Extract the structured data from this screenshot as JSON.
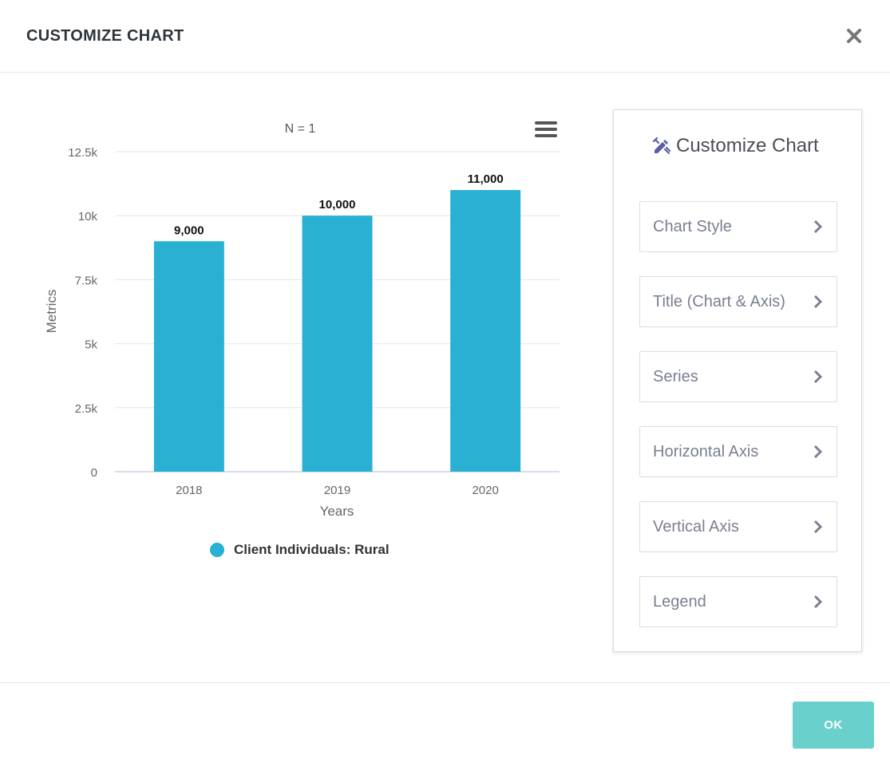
{
  "modal": {
    "title": "CUSTOMIZE CHART",
    "close_icon": "close-icon",
    "ok_label": "OK"
  },
  "chart_data": {
    "type": "bar",
    "title": "N = 1",
    "categories": [
      "2018",
      "2019",
      "2020"
    ],
    "series": [
      {
        "name": "Client Individuals: Rural",
        "values": [
          9000,
          10000,
          11000
        ],
        "color": "#29b0d2"
      }
    ],
    "data_labels": [
      "9,000",
      "10,000",
      "11,000"
    ],
    "xlabel": "Years",
    "ylabel": "Metrics",
    "ylim": [
      0,
      12500
    ],
    "yticks": [
      0,
      2500,
      5000,
      7500,
      10000,
      12500
    ],
    "ytick_labels": [
      "0",
      "2.5k",
      "5k",
      "7.5k",
      "10k",
      "12.5k"
    ],
    "grid": true,
    "legend_position": "bottom-center"
  },
  "chart_menu_icon": "hamburger-menu-icon",
  "panel": {
    "heading": "Customize Chart",
    "heading_icon": "paint-brush-icon",
    "options": [
      {
        "label": "Chart Style"
      },
      {
        "label": "Title (Chart & Axis)"
      },
      {
        "label": "Series"
      },
      {
        "label": "Horizontal Axis"
      },
      {
        "label": "Vertical Axis"
      },
      {
        "label": "Legend"
      }
    ]
  },
  "colors": {
    "accent": "#69d0cb",
    "bar": "#29b0d2",
    "icon": "#5b5ea6"
  }
}
